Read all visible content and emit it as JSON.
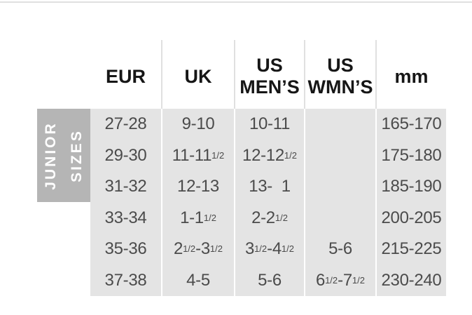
{
  "chart_data": {
    "type": "table",
    "title": "",
    "row_group_label": "JUNIOR\nSIZES",
    "columns": [
      {
        "header": "EUR",
        "values": [
          "27-28",
          "29-30",
          "31-32",
          "33-34",
          "35-36",
          "37-38"
        ]
      },
      {
        "header": "UK",
        "values": [
          "9-10",
          "11-11{1/2}",
          "12-13",
          "1-1{1/2}",
          "2{1/2}-3{1/2}",
          "4-5"
        ]
      },
      {
        "header": "US\nMEN’S",
        "values": [
          "10-11",
          "12-12{1/2}",
          "13-  1",
          "2-2{1/2}",
          "3{1/2}-4{1/2}",
          "5-6"
        ]
      },
      {
        "header": "US\nWMN’S",
        "values": [
          "",
          "",
          "",
          "",
          "5-6",
          "6{1/2}-7{1/2}"
        ]
      },
      {
        "header": "mm",
        "values": [
          "165-170",
          "175-180",
          "185-190",
          "200-205",
          "215-225",
          "230-240"
        ]
      }
    ]
  },
  "colors": {
    "column_band": "#e4e4e4",
    "row_group_label_bg": "#b5b5b5",
    "separator": "#e0e0e0",
    "header_text": "#161616",
    "body_text": "#4b4b4b",
    "label_text": "#ffffff"
  }
}
